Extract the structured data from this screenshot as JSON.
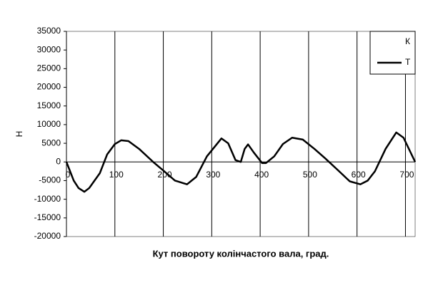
{
  "chart_data": {
    "type": "line",
    "x_label": "Кут повороту колінчастого вала, град.",
    "y_label": "Н",
    "x": [
      0,
      15,
      25,
      37,
      47,
      69,
      84,
      100,
      113,
      128,
      150,
      179,
      200,
      224,
      249,
      268,
      290,
      320,
      334,
      349,
      360,
      368,
      375,
      387,
      404,
      412,
      429,
      447,
      466,
      488,
      512,
      534,
      563,
      585,
      607,
      622,
      637,
      659,
      681,
      696,
      720
    ],
    "series": [
      {
        "name": "К",
        "color": "#ffffff",
        "values": [
          null,
          null,
          null,
          null,
          null,
          null,
          null,
          null,
          null,
          null,
          null,
          null,
          null,
          null,
          null,
          null,
          null,
          null,
          null,
          null,
          null,
          null,
          null,
          null,
          null,
          null,
          null,
          null,
          null,
          null,
          null,
          null,
          null,
          null,
          null,
          null,
          null,
          null,
          null,
          null,
          null
        ]
      },
      {
        "name": "Т",
        "color": "#000000",
        "values": [
          0,
          -5000,
          -7000,
          -8000,
          -7000,
          -3000,
          2000,
          4800,
          5800,
          5600,
          3500,
          0,
          -2300,
          -5000,
          -6000,
          -4000,
          1500,
          6300,
          5000,
          500,
          0,
          3500,
          4700,
          2500,
          -300,
          -300,
          1500,
          4800,
          6500,
          6000,
          3500,
          1000,
          -2500,
          -5200,
          -6000,
          -5000,
          -2500,
          3500,
          7900,
          6500,
          0
        ]
      }
    ],
    "xlim": [
      0,
      720
    ],
    "xticks": [
      0,
      100,
      200,
      300,
      400,
      500,
      600,
      700
    ],
    "ylim": [
      -20000,
      35000
    ],
    "yticks": [
      -20000,
      -15000,
      -10000,
      -5000,
      0,
      5000,
      10000,
      15000,
      20000,
      25000,
      30000,
      35000
    ],
    "grid": "x",
    "legend": "upper right"
  }
}
